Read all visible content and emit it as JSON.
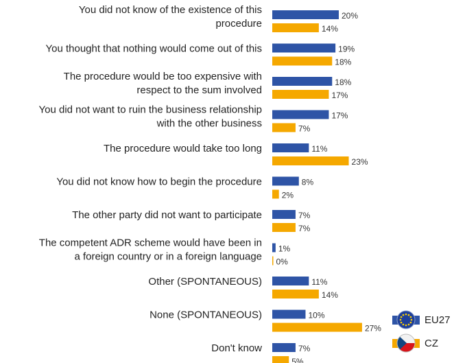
{
  "chart_data": {
    "type": "bar",
    "orientation": "horizontal",
    "categories": [
      [
        "You did not know of the existence of this",
        "procedure"
      ],
      [
        "You thought that nothing would come out of this"
      ],
      [
        "The procedure would be too expensive with",
        "respect to the sum involved"
      ],
      [
        "You did not want to ruin the business relationship",
        "with the other business"
      ],
      [
        "The procedure would take too long"
      ],
      [
        "You did not know how to begin the procedure"
      ],
      [
        "The other party did not want to participate"
      ],
      [
        "The competent ADR scheme would have been in",
        "a foreign country or in a foreign language"
      ],
      [
        "Other (SPONTANEOUS)"
      ],
      [
        "None (SPONTANEOUS)"
      ],
      [
        "Don't know"
      ]
    ],
    "series": [
      {
        "name": "EU27",
        "color": "#2E54A6",
        "values": [
          20,
          19,
          18,
          17,
          11,
          8,
          7,
          1,
          11,
          10,
          7
        ]
      },
      {
        "name": "CZ",
        "color": "#F5A800",
        "values": [
          14,
          18,
          17,
          7,
          23,
          2,
          7,
          0,
          14,
          27,
          5
        ]
      }
    ],
    "value_suffix": "%",
    "xlim": [
      0,
      30
    ],
    "grid": false,
    "legend_position": "bottom-right",
    "legend_icons": [
      "eu-flag-icon",
      "czech-flag-icon"
    ]
  }
}
